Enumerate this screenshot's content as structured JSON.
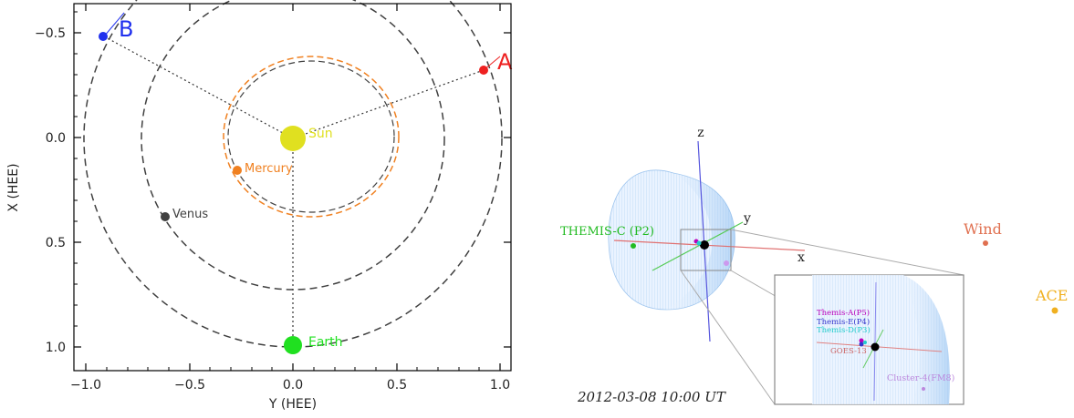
{
  "left_plot": {
    "x_axis_label": "Y (HEE)",
    "y_axis_label": "X (HEE)",
    "x_ticks": [
      "−1.0",
      "−0.5",
      "0.0",
      "0.5",
      "1.0"
    ],
    "y_ticks": [
      "−0.5",
      "0.0",
      "0.5",
      "1.0"
    ],
    "bodies": [
      {
        "id": "sun",
        "label": "Sun",
        "color": "#e0e020"
      },
      {
        "id": "mercury",
        "label": "Mercury",
        "color": "#f08020"
      },
      {
        "id": "venus",
        "label": "Venus",
        "color": "#404040"
      },
      {
        "id": "earth",
        "label": "Earth",
        "color": "#20e020"
      },
      {
        "id": "stereo-a",
        "label": "A",
        "color": "#ee2020"
      },
      {
        "id": "stereo-b",
        "label": "B",
        "color": "#2030ee"
      }
    ]
  },
  "right_panel": {
    "axis_x": "x",
    "axis_y": "y",
    "axis_z": "z",
    "timestamp": "2012-03-08 10:00 UT",
    "spacecraft": [
      {
        "id": "themis-c",
        "label": "THEMIS-C (P2)",
        "color": "#22bb22"
      },
      {
        "id": "wind",
        "label": "Wind",
        "color": "#e07050"
      },
      {
        "id": "ace",
        "label": "ACE",
        "color": "#f0b020"
      }
    ],
    "inset_labels": [
      {
        "id": "themis-a",
        "label": "Themis-A(P5)",
        "color": "#bb00bb"
      },
      {
        "id": "themis-e",
        "label": "Themis-E(P4)",
        "color": "#3333cc"
      },
      {
        "id": "themis-d",
        "label": "Themis-D(P3)",
        "color": "#22cccc"
      },
      {
        "id": "goes-13",
        "label": "GOES-13",
        "color": "#cc6666"
      },
      {
        "id": "cluster-4",
        "label": "Cluster-4(FM8)",
        "color": "#bb88dd"
      }
    ]
  }
}
